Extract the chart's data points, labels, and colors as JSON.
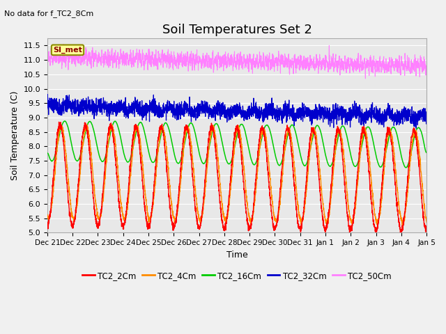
{
  "title": "Soil Temperatures Set 2",
  "subtitle": "No data for f_TC2_8Cm",
  "xlabel": "Time",
  "ylabel": "Soil Temperature (C)",
  "ylim": [
    5.0,
    11.75
  ],
  "yticks": [
    5.0,
    5.5,
    6.0,
    6.5,
    7.0,
    7.5,
    8.0,
    8.5,
    9.0,
    9.5,
    10.0,
    10.5,
    11.0,
    11.5
  ],
  "n_points": 3360,
  "series_colors": {
    "TC2_2Cm": "#FF0000",
    "TC2_4Cm": "#FF8C00",
    "TC2_16Cm": "#00CC00",
    "TC2_32Cm": "#0000CC",
    "TC2_50Cm": "#FF80FF"
  },
  "legend_labels": [
    "TC2_2Cm",
    "TC2_4Cm",
    "TC2_16Cm",
    "TC2_32Cm",
    "TC2_50Cm"
  ],
  "xtick_labels": [
    "Dec 21",
    "Dec 22",
    "Dec 23",
    "Dec 24",
    "Dec 25",
    "Dec 26",
    "Dec 27",
    "Dec 28",
    "Dec 29",
    "Dec 30",
    "Dec 31",
    "Jan 1",
    "Jan 2",
    "Jan 3",
    "Jan 4",
    "Jan 5"
  ],
  "annotation_text": "SI_met",
  "plot_bg_color": "#E8E8E8",
  "fig_bg_color": "#F0F0F0",
  "grid_color": "#FFFFFF",
  "title_fontsize": 13,
  "label_fontsize": 9,
  "tick_fontsize": 8
}
